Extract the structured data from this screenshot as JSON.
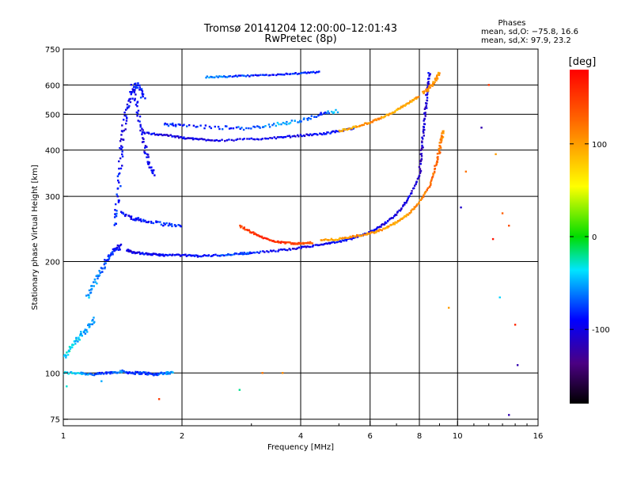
{
  "chart_data": {
    "type": "scatter",
    "title": "Tromsø 20141204 12:00:00–12:01:43",
    "subtitle": "RwPretec (8p)",
    "xlabel": "Frequency [MHz]",
    "ylabel": "Stationary phase Virtual Height [km]",
    "x_scale": "log",
    "y_scale": "log",
    "xlim": [
      1,
      16
    ],
    "ylim": [
      72,
      750
    ],
    "x_ticks": [
      1,
      2,
      4,
      6,
      8,
      10,
      16
    ],
    "y_ticks": [
      75,
      100,
      200,
      300,
      400,
      500,
      600,
      750
    ],
    "grid": true,
    "stats": {
      "heading": "Phases",
      "line_o": "mean, sd,O: −75.8, 16.6",
      "line_x": "mean, sd,X:  97.9, 23.2"
    },
    "colorbar": {
      "label": "[deg]",
      "range": [
        -180,
        180
      ],
      "ticks": [
        100,
        0,
        -100
      ]
    },
    "traces": [
      {
        "f": [
          1.0,
          1.1,
          1.2,
          1.3,
          1.4,
          1.5,
          1.6,
          1.7,
          1.8,
          1.9
        ],
        "h": [
          100,
          100,
          99,
          100,
          101,
          100,
          100,
          99,
          100,
          100
        ],
        "phase": [
          -40,
          -45,
          -70,
          -85,
          -60,
          -90,
          -75,
          -80,
          -70,
          -40
        ],
        "spread": 0.015
      },
      {
        "f": [
          1.0,
          1.05,
          1.1,
          1.15,
          1.2
        ],
        "h": [
          110,
          118,
          125,
          132,
          140
        ],
        "phase": [
          -35,
          -40,
          -45,
          -50,
          -55
        ],
        "spread": 0.03
      },
      {
        "f": [
          1.15,
          1.2,
          1.25,
          1.3,
          1.35,
          1.4
        ],
        "h": [
          160,
          175,
          190,
          205,
          215,
          220
        ],
        "phase": [
          -50,
          -60,
          -70,
          -80,
          -85,
          -90
        ],
        "spread": 0.03
      },
      {
        "f": [
          1.35,
          1.38,
          1.4,
          1.42,
          1.45,
          1.5,
          1.55,
          1.6
        ],
        "h": [
          250,
          300,
          380,
          450,
          520,
          580,
          600,
          550
        ],
        "phase": [
          -70,
          -85,
          -95,
          -100,
          -95,
          -90,
          -85,
          -80
        ],
        "spread": 0.04
      },
      {
        "f": [
          1.5,
          1.55,
          1.6,
          1.65,
          1.7
        ],
        "h": [
          600,
          500,
          420,
          370,
          340
        ],
        "phase": [
          -90,
          -95,
          -100,
          -95,
          -90
        ],
        "spread": 0.03
      },
      {
        "f": [
          1.45,
          1.5,
          1.6,
          1.7,
          1.8,
          2.0,
          2.2,
          2.5,
          2.8,
          3.0,
          3.5,
          4.0
        ],
        "h": [
          215,
          212,
          210,
          209,
          208,
          208,
          207,
          208,
          210,
          211,
          214,
          218
        ],
        "phase": [
          -100,
          -100,
          -95,
          -95,
          -90,
          -95,
          -90,
          -80,
          -70,
          -80,
          -95,
          -100
        ],
        "spread": 0.01
      },
      {
        "f": [
          1.4,
          1.5,
          1.6,
          1.8,
          2.0
        ],
        "h": [
          270,
          262,
          258,
          252,
          250
        ],
        "phase": [
          -90,
          -95,
          -85,
          -80,
          -85
        ],
        "spread": 0.02
      },
      {
        "f": [
          1.6,
          1.8,
          2.0,
          2.2,
          2.5,
          3.0,
          3.5,
          4.0,
          4.5,
          5.0,
          5.5
        ],
        "h": [
          445,
          440,
          432,
          428,
          425,
          428,
          432,
          438,
          442,
          450,
          460
        ],
        "phase": [
          -95,
          -100,
          -100,
          -100,
          -100,
          -95,
          -100,
          -100,
          -95,
          -90,
          -80
        ],
        "spread": 0.01
      },
      {
        "f": [
          2.3,
          2.6,
          3.0,
          3.5,
          4.0,
          4.5
        ],
        "h": [
          630,
          632,
          635,
          640,
          645,
          650
        ],
        "phase": [
          -60,
          -70,
          -85,
          -90,
          -85,
          -75
        ],
        "spread": 0.008
      },
      {
        "f": [
          4.0,
          4.5,
          5.0,
          5.5,
          6.0,
          6.5,
          7.0,
          7.5,
          8.0
        ],
        "h": [
          218,
          222,
          226,
          232,
          240,
          252,
          268,
          295,
          340
        ],
        "phase": [
          -100,
          -95,
          -90,
          -85,
          -95,
          -100,
          -100,
          -105,
          -110
        ],
        "spread": 0.01
      },
      {
        "f": [
          8.0,
          8.1,
          8.2,
          8.3,
          8.4,
          8.5
        ],
        "h": [
          340,
          390,
          450,
          520,
          590,
          650
        ],
        "phase": [
          -110,
          -115,
          -110,
          -105,
          -100,
          -95
        ],
        "spread": 0.02
      },
      {
        "f": [
          5.0,
          5.5,
          6.0,
          6.5,
          7.0,
          7.5,
          8.0
        ],
        "h": [
          450,
          462,
          475,
          492,
          512,
          535,
          560
        ],
        "phase": [
          90,
          100,
          110,
          100,
          90,
          95,
          100
        ],
        "spread": 0.01
      },
      {
        "f": [
          8.2,
          8.5,
          8.8,
          9.0
        ],
        "h": [
          570,
          590,
          620,
          650
        ],
        "phase": [
          100,
          110,
          105,
          100
        ],
        "spread": 0.02
      },
      {
        "f": [
          4.5,
          5.0,
          5.5,
          6.0,
          6.5,
          7.0,
          7.5,
          8.0,
          8.5,
          8.8
        ],
        "h": [
          228,
          230,
          234,
          238,
          245,
          255,
          268,
          290,
          320,
          360
        ],
        "phase": [
          95,
          100,
          110,
          105,
          100,
          95,
          100,
          110,
          120,
          130
        ],
        "spread": 0.01
      },
      {
        "f": [
          8.8,
          9.0,
          9.1,
          9.2
        ],
        "h": [
          360,
          400,
          430,
          450
        ],
        "phase": [
          130,
          125,
          115,
          110
        ],
        "spread": 0.02
      },
      {
        "f": [
          2.8,
          3.0,
          3.2,
          3.5,
          3.8,
          4.0,
          4.3
        ],
        "h": [
          250,
          240,
          232,
          226,
          224,
          224,
          225
        ],
        "phase": [
          140,
          150,
          160,
          155,
          150,
          140,
          130
        ],
        "spread": 0.01
      },
      {
        "f": [
          1.8,
          2.0,
          2.5,
          3.0,
          3.5,
          4.0,
          4.5,
          5.0
        ],
        "h": [
          470,
          465,
          460,
          458,
          470,
          480,
          500,
          510
        ],
        "phase": [
          -80,
          -85,
          -80,
          -70,
          -50,
          -60,
          -80,
          -40
        ],
        "spread": 0.02
      }
    ],
    "scatter_points": [
      {
        "f": 1.02,
        "h": 92,
        "phase": -30
      },
      {
        "f": 1.25,
        "h": 95,
        "phase": -50
      },
      {
        "f": 1.75,
        "h": 85,
        "phase": 150
      },
      {
        "f": 2.8,
        "h": 90,
        "phase": -20
      },
      {
        "f": 3.2,
        "h": 100,
        "phase": 120
      },
      {
        "f": 3.6,
        "h": 100,
        "phase": 110
      },
      {
        "f": 10.2,
        "h": 280,
        "phase": -110
      },
      {
        "f": 10.5,
        "h": 350,
        "phase": 120
      },
      {
        "f": 11.5,
        "h": 460,
        "phase": -120
      },
      {
        "f": 12.0,
        "h": 600,
        "phase": 150
      },
      {
        "f": 12.5,
        "h": 390,
        "phase": 100
      },
      {
        "f": 13.0,
        "h": 270,
        "phase": 130
      },
      {
        "f": 12.3,
        "h": 230,
        "phase": 170
      },
      {
        "f": 13.5,
        "h": 250,
        "phase": 140
      },
      {
        "f": 12.8,
        "h": 160,
        "phase": -40
      },
      {
        "f": 14.0,
        "h": 135,
        "phase": 160
      },
      {
        "f": 14.2,
        "h": 105,
        "phase": -120
      },
      {
        "f": 13.5,
        "h": 77,
        "phase": -120
      },
      {
        "f": 9.5,
        "h": 150,
        "phase": 100
      }
    ]
  }
}
